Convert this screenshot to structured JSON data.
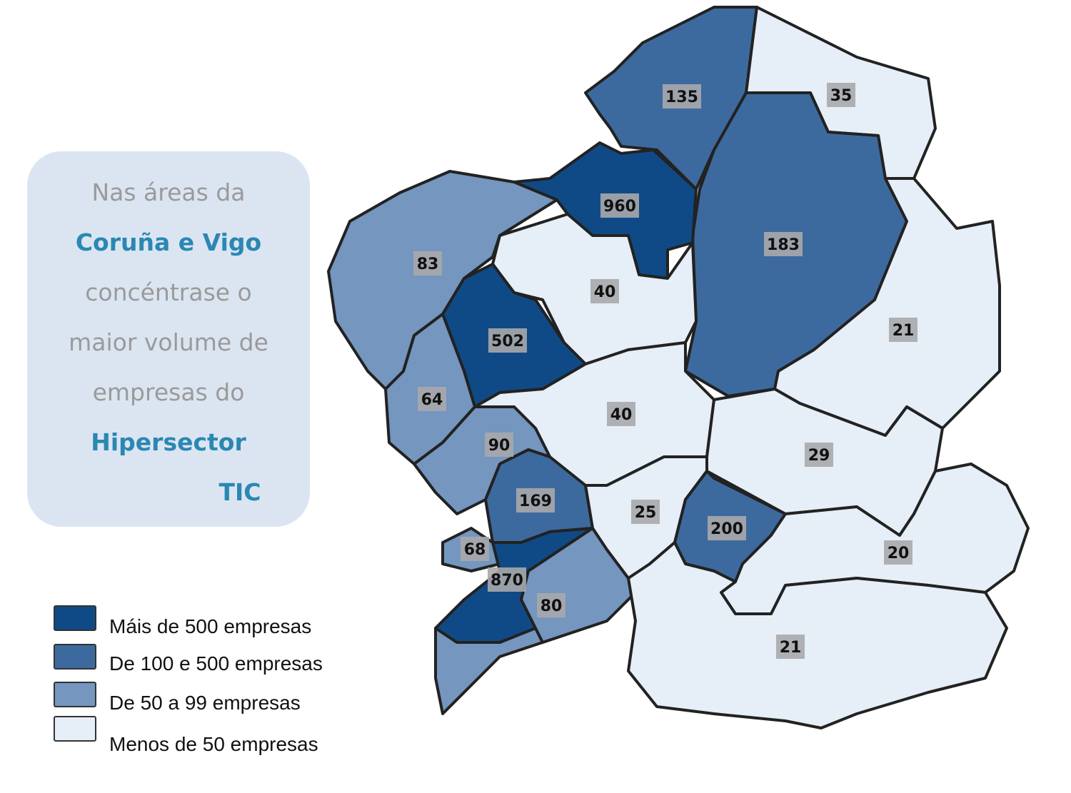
{
  "callout": {
    "lines": [
      {
        "text": "Nas áreas da",
        "style": "grey"
      },
      {
        "text": "Coruña e Vigo",
        "style": "blue"
      },
      {
        "text": "concéntrase o",
        "style": "grey"
      },
      {
        "text": "maior volume de",
        "style": "grey"
      },
      {
        "text": "empresas do",
        "style": "grey"
      },
      {
        "text": "Hipersector",
        "style": "blue"
      },
      {
        "text": "TIC",
        "style": "blue"
      }
    ]
  },
  "legend": [
    {
      "label": "Máis de 500 empresas",
      "color": "#0f4a86"
    },
    {
      "label": "De 100 e 500 empresas",
      "color": "#3d6a9e"
    },
    {
      "label": "De 50 a 99 empresas",
      "color": "#7496bf"
    },
    {
      "label": "Menos de 50 empresas",
      "color": "#e6eef7"
    }
  ],
  "regions": [
    {
      "value": "135",
      "class": 1
    },
    {
      "value": "35",
      "class": 3
    },
    {
      "value": "183",
      "class": 1
    },
    {
      "value": "960",
      "class": 0
    },
    {
      "value": "83",
      "class": 2
    },
    {
      "value": "40",
      "class": 3
    },
    {
      "value": "502",
      "class": 0
    },
    {
      "value": "64",
      "class": 2
    },
    {
      "value": "21",
      "class": 3
    },
    {
      "value": "40",
      "class": 3
    },
    {
      "value": "90",
      "class": 2
    },
    {
      "value": "29",
      "class": 3
    },
    {
      "value": "169",
      "class": 1
    },
    {
      "value": "68",
      "class": 2
    },
    {
      "value": "870",
      "class": 0
    },
    {
      "value": "80",
      "class": 2
    },
    {
      "value": "25",
      "class": 3
    },
    {
      "value": "200",
      "class": 1
    },
    {
      "value": "20",
      "class": 3
    },
    {
      "value": "21",
      "class": 3
    }
  ]
}
